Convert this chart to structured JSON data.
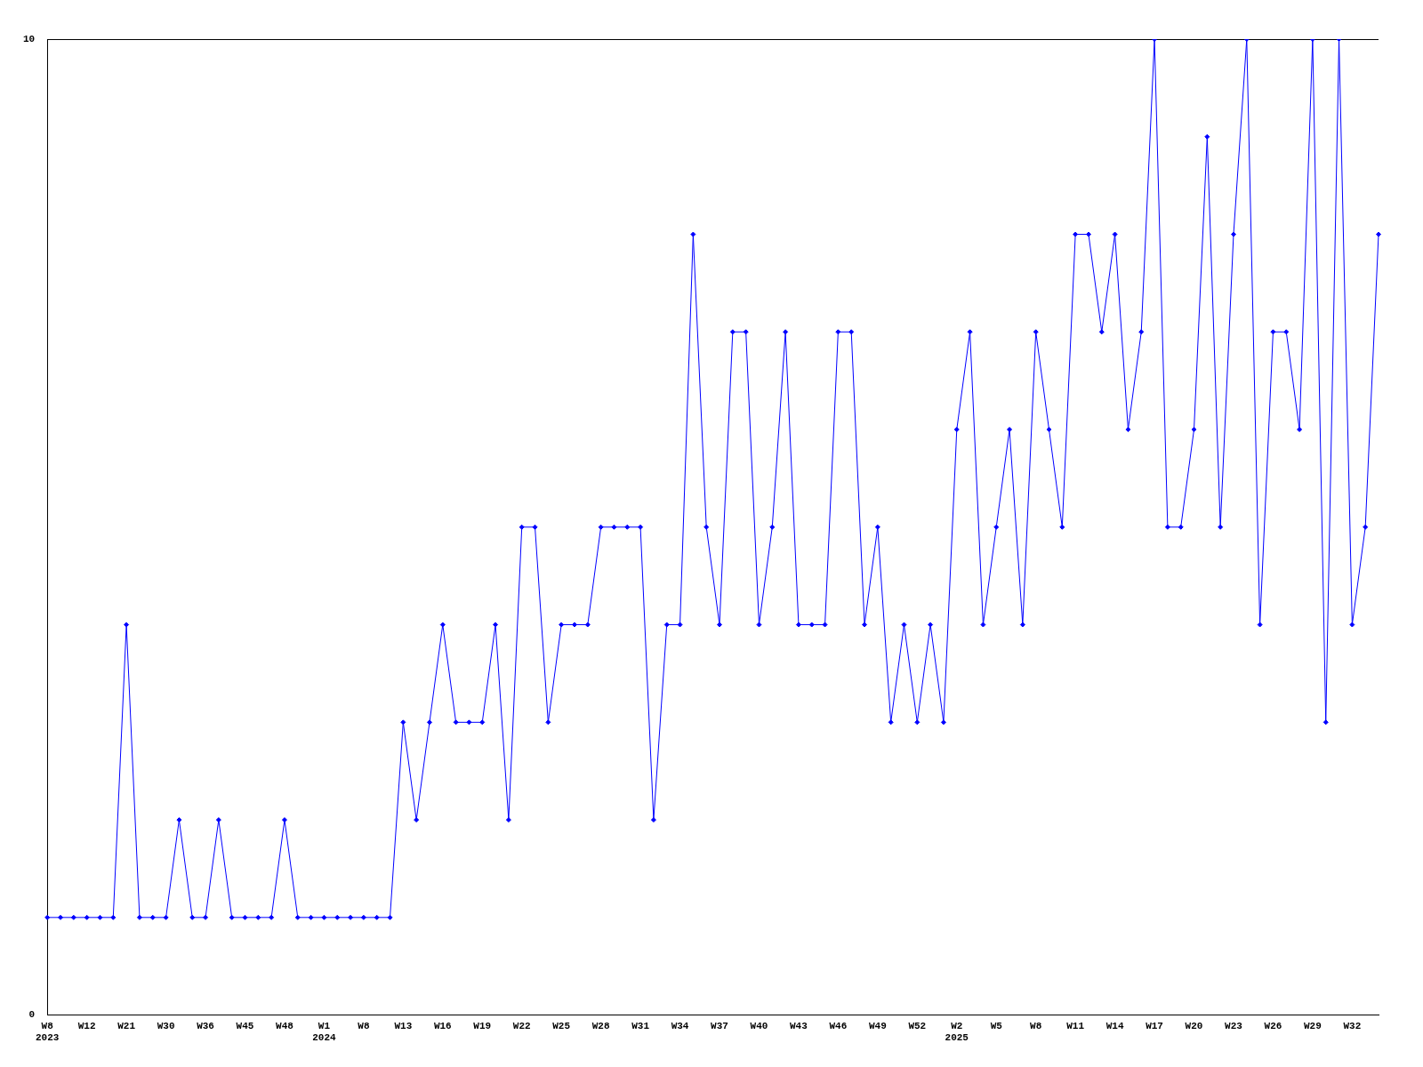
{
  "chart_data": {
    "type": "line",
    "categories": [
      "W8\n2023",
      null,
      null,
      "W12",
      null,
      null,
      "W21",
      null,
      null,
      "W30",
      null,
      null,
      "W36",
      null,
      null,
      "W45",
      null,
      null,
      "W48",
      null,
      null,
      "W1\n2024",
      null,
      null,
      "W8",
      null,
      null,
      "W13",
      null,
      null,
      "W16",
      null,
      null,
      "W19",
      null,
      null,
      "W22",
      null,
      null,
      "W25",
      null,
      null,
      "W28",
      null,
      null,
      "W31",
      null,
      null,
      "W34",
      null,
      null,
      "W37",
      null,
      null,
      "W40",
      null,
      null,
      "W43",
      null,
      null,
      "W46",
      null,
      null,
      "W49",
      null,
      null,
      "W52",
      null,
      null,
      "W2\n2025",
      null,
      null,
      "W5",
      null,
      null,
      "W8",
      null,
      null,
      "W11",
      null,
      null,
      "W14",
      null,
      null,
      "W17",
      null,
      null,
      "W20",
      null,
      null,
      "W23",
      null,
      null,
      "W26",
      null,
      null,
      "W29",
      null,
      null,
      "W32",
      null,
      null
    ],
    "series": [
      {
        "color": "#0000ff",
        "values": [
          1,
          1,
          1,
          1,
          1,
          1,
          4,
          1,
          1,
          1,
          2,
          1,
          1,
          2,
          1,
          1,
          1,
          1,
          2,
          1,
          1,
          1,
          1,
          1,
          1,
          1,
          1,
          3,
          2,
          3,
          4,
          3,
          3,
          3,
          4,
          2,
          5,
          5,
          3,
          4,
          4,
          4,
          5,
          5,
          5,
          5,
          2,
          4,
          4,
          8,
          5,
          4,
          7,
          7,
          4,
          5,
          7,
          4,
          4,
          4,
          7,
          7,
          4,
          5,
          3,
          4,
          3,
          4,
          3,
          6,
          7,
          4,
          5,
          6,
          4,
          7,
          6,
          5,
          8,
          8,
          7,
          8,
          6,
          7,
          10,
          5,
          5,
          6,
          9,
          5,
          8,
          10,
          4,
          7,
          7,
          6,
          10,
          3,
          10,
          4,
          5,
          8
        ]
      }
    ],
    "ylim": [
      0,
      10
    ],
    "yticks": [
      0,
      10
    ],
    "legend": false,
    "marker": "diamond",
    "line_style": "solid"
  }
}
